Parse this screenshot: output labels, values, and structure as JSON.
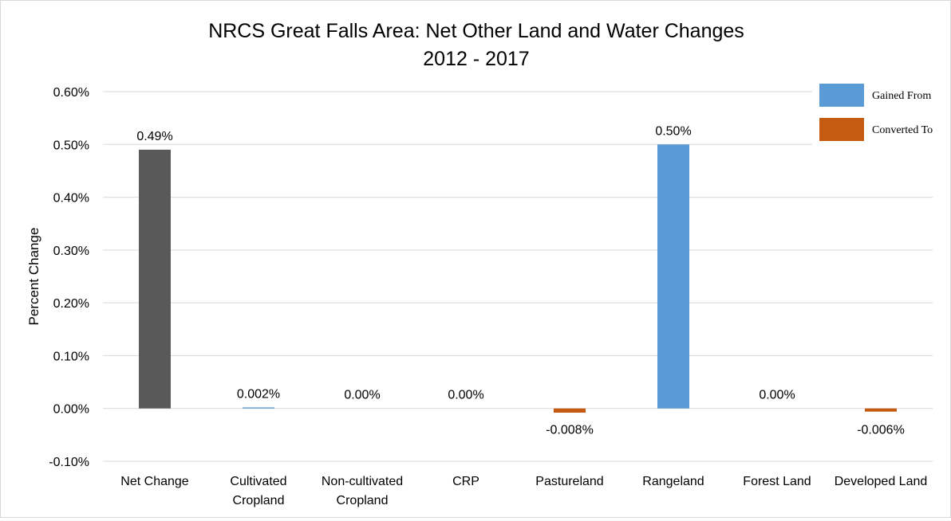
{
  "chart_data": {
    "type": "bar",
    "title": "NRCS Great Falls Area: Net Other Land and Water Changes",
    "subtitle": "2012 - 2017",
    "xlabel": "",
    "ylabel": "Percent Change",
    "ylim": [
      -0.001,
      0.006
    ],
    "y_ticks": [
      "-0.10%",
      "0.00%",
      "0.10%",
      "0.20%",
      "0.30%",
      "0.40%",
      "0.50%",
      "0.60%"
    ],
    "y_tick_values": [
      -0.001,
      0.0,
      0.001,
      0.002,
      0.003,
      0.004,
      0.005,
      0.006
    ],
    "grid": true,
    "categories": [
      [
        "Net Change"
      ],
      [
        "Cultivated",
        "Cropland"
      ],
      [
        "Non-cultivated",
        "Cropland"
      ],
      [
        "CRP"
      ],
      [
        "Pastureland"
      ],
      [
        "Rangeland"
      ],
      [
        "Forest Land"
      ],
      [
        "Developed Land"
      ]
    ],
    "values": [
      0.0049,
      2e-05,
      0.0,
      0.0,
      -8e-05,
      0.005,
      0.0,
      -6e-05
    ],
    "data_labels": [
      "0.49%",
      "0.002%",
      "0.00%",
      "0.00%",
      "-0.008%",
      "0.50%",
      "0.00%",
      "-0.006%"
    ],
    "bar_groups": [
      "net",
      "gained",
      "gained",
      "gained",
      "converted",
      "gained",
      "gained",
      "converted"
    ],
    "colors": {
      "net": "#595959",
      "gained": "#5b9bd5",
      "converted": "#c55a11",
      "grid": "#d9d9d9"
    },
    "legend": {
      "position": "top-right",
      "entries": [
        {
          "name": "Gained From",
          "color": "#5b9bd5"
        },
        {
          "name": "Converted To",
          "color": "#c55a11"
        }
      ]
    }
  }
}
